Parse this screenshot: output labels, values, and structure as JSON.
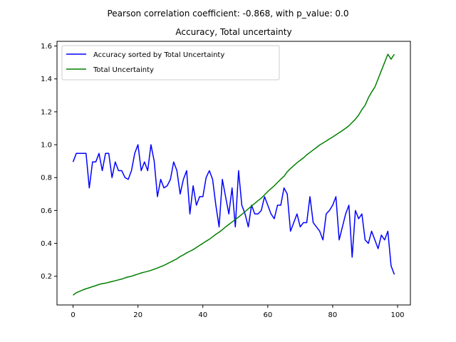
{
  "chart_data": {
    "type": "line",
    "suptitle": "Pearson correlation coefficient: -0.868, with p_value: 0.0",
    "title": "Accuracy, Total uncertainty",
    "xlabel": "",
    "ylabel": "",
    "xlim": [
      -4.95,
      103.95
    ],
    "ylim": [
      0.0255,
      1.6285
    ],
    "xticks": [
      0,
      20,
      40,
      60,
      80,
      100
    ],
    "yticks": [
      0.2,
      0.4,
      0.6,
      0.8,
      1.0,
      1.2,
      1.4,
      1.6
    ],
    "xtick_labels": [
      "0",
      "20",
      "40",
      "60",
      "80",
      "100"
    ],
    "ytick_labels": [
      "0.2",
      "0.4",
      "0.6",
      "0.8",
      "1.0",
      "1.2",
      "1.4",
      "1.6"
    ],
    "grid": false,
    "legend_position": "upper-left",
    "series": [
      {
        "name": "Accuracy sorted by Total Uncertainty",
        "color": "#0000ff",
        "x": [
          0,
          1,
          2,
          3,
          4,
          5,
          6,
          7,
          8,
          9,
          10,
          11,
          12,
          13,
          14,
          15,
          16,
          17,
          18,
          19,
          20,
          21,
          22,
          23,
          24,
          25,
          26,
          27,
          28,
          29,
          30,
          31,
          32,
          33,
          34,
          35,
          36,
          37,
          38,
          39,
          40,
          41,
          42,
          43,
          44,
          45,
          46,
          47,
          48,
          49,
          50,
          51,
          52,
          53,
          54,
          55,
          56,
          57,
          58,
          59,
          60,
          61,
          62,
          63,
          64,
          65,
          66,
          67,
          68,
          69,
          70,
          71,
          72,
          73,
          74,
          75,
          76,
          77,
          78,
          79,
          80,
          81,
          82,
          83,
          84,
          85,
          86,
          87,
          88,
          89,
          90,
          91,
          92,
          93,
          94,
          95,
          96,
          97,
          98,
          99
        ],
        "values": [
          0.895,
          0.947,
          0.947,
          0.947,
          0.947,
          0.737,
          0.895,
          0.895,
          0.947,
          0.842,
          0.947,
          0.947,
          0.8,
          0.895,
          0.842,
          0.842,
          0.8,
          0.789,
          0.842,
          0.947,
          1.0,
          0.842,
          0.895,
          0.842,
          1.0,
          0.9,
          0.684,
          0.789,
          0.737,
          0.75,
          0.789,
          0.895,
          0.842,
          0.7,
          0.789,
          0.842,
          0.579,
          0.75,
          0.632,
          0.684,
          0.684,
          0.8,
          0.842,
          0.789,
          0.632,
          0.5,
          0.789,
          0.684,
          0.579,
          0.737,
          0.5,
          0.842,
          0.632,
          0.579,
          0.5,
          0.632,
          0.579,
          0.579,
          0.6,
          0.684,
          0.632,
          0.579,
          0.55,
          0.632,
          0.632,
          0.737,
          0.7,
          0.474,
          0.526,
          0.579,
          0.5,
          0.526,
          0.526,
          0.684,
          0.526,
          0.5,
          0.474,
          0.421,
          0.579,
          0.6,
          0.632,
          0.684,
          0.421,
          0.5,
          0.579,
          0.632,
          0.316,
          0.6,
          0.55,
          0.579,
          0.421,
          0.4,
          0.474,
          0.421,
          0.368,
          0.45,
          0.421,
          0.474,
          0.263,
          0.211
        ]
      },
      {
        "name": "Total Uncertainty",
        "color": "#008000",
        "x": [
          0,
          1,
          2,
          3,
          4,
          5,
          6,
          7,
          8,
          9,
          10,
          11,
          12,
          13,
          14,
          15,
          16,
          17,
          18,
          19,
          20,
          21,
          22,
          23,
          24,
          25,
          26,
          27,
          28,
          29,
          30,
          31,
          32,
          33,
          34,
          35,
          36,
          37,
          38,
          39,
          40,
          41,
          42,
          43,
          44,
          45,
          46,
          47,
          48,
          49,
          50,
          51,
          52,
          53,
          54,
          55,
          56,
          57,
          58,
          59,
          60,
          61,
          62,
          63,
          64,
          65,
          66,
          67,
          68,
          69,
          70,
          71,
          72,
          73,
          74,
          75,
          76,
          77,
          78,
          79,
          80,
          81,
          82,
          83,
          84,
          85,
          86,
          87,
          88,
          89,
          90,
          91,
          92,
          93,
          94,
          95,
          96,
          97,
          98,
          99
        ],
        "values": [
          0.085,
          0.1,
          0.108,
          0.117,
          0.124,
          0.13,
          0.137,
          0.143,
          0.15,
          0.155,
          0.158,
          0.163,
          0.168,
          0.173,
          0.178,
          0.183,
          0.19,
          0.196,
          0.2,
          0.207,
          0.213,
          0.22,
          0.225,
          0.23,
          0.236,
          0.243,
          0.25,
          0.258,
          0.266,
          0.276,
          0.286,
          0.296,
          0.306,
          0.32,
          0.33,
          0.342,
          0.352,
          0.362,
          0.375,
          0.388,
          0.4,
          0.413,
          0.425,
          0.44,
          0.455,
          0.468,
          0.483,
          0.5,
          0.515,
          0.53,
          0.545,
          0.56,
          0.576,
          0.593,
          0.61,
          0.627,
          0.643,
          0.66,
          0.675,
          0.695,
          0.715,
          0.733,
          0.75,
          0.77,
          0.79,
          0.808,
          0.835,
          0.855,
          0.872,
          0.89,
          0.905,
          0.92,
          0.938,
          0.953,
          0.968,
          0.983,
          0.998,
          1.01,
          1.022,
          1.035,
          1.047,
          1.06,
          1.073,
          1.086,
          1.1,
          1.115,
          1.135,
          1.155,
          1.18,
          1.213,
          1.24,
          1.285,
          1.32,
          1.35,
          1.4,
          1.45,
          1.5,
          1.55,
          1.52,
          1.55
        ]
      }
    ]
  }
}
